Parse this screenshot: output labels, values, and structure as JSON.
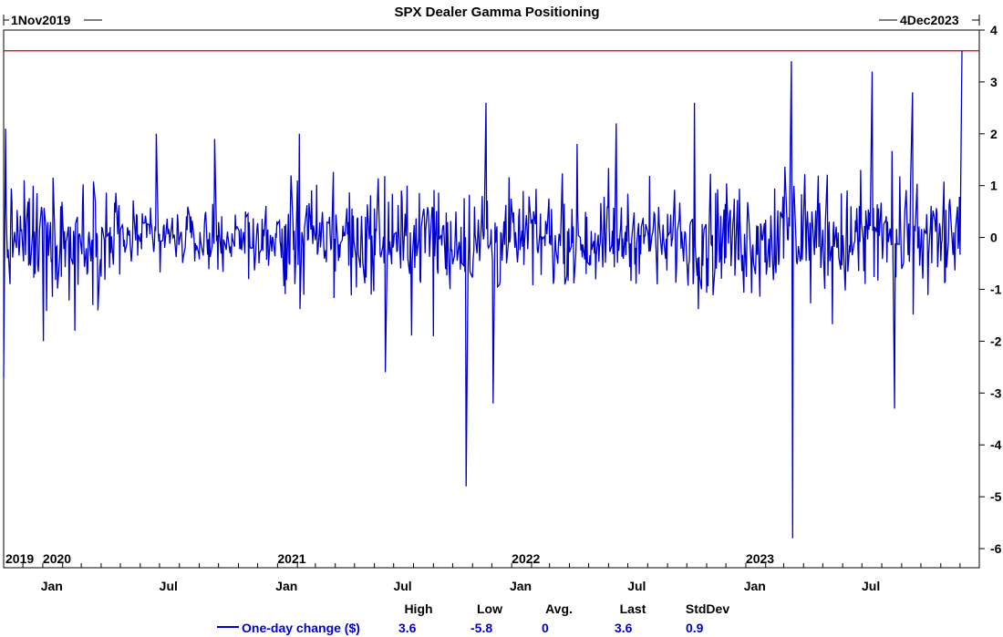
{
  "chart_data": {
    "type": "line",
    "title": "SPX Dealer Gamma Positioning",
    "start_label": "1Nov2019",
    "end_label": "4Dec2023",
    "x_start": "2019-11-01",
    "x_end": "2023-12-04",
    "ylim": [
      -6.2,
      4
    ],
    "y_ticks": [
      "4",
      "3",
      "2",
      "1",
      "0",
      "-1",
      "-2",
      "-3",
      "-4",
      "-5",
      "-6"
    ],
    "y_tick_values": [
      4,
      3,
      2,
      1,
      0,
      -1,
      -2,
      -3,
      -4,
      -5,
      -6
    ],
    "year_labels": [
      "2019",
      "2020",
      "2021",
      "2022",
      "2023"
    ],
    "month_labels": [
      "Jan",
      "Jul",
      "Jan",
      "Jul",
      "Jan",
      "Jul",
      "Jan",
      "Jul"
    ],
    "reference_line": {
      "value": 3.6,
      "color": "#cc0000"
    },
    "series": [
      {
        "name": "One-day change ($)",
        "color": "#0000cc",
        "notable_points": [
          {
            "x": "2019-11-01",
            "y": -2.7
          },
          {
            "x": "2019-11-04",
            "y": 2.1
          },
          {
            "x": "2020-01-02",
            "y": -2.0
          },
          {
            "x": "2020-02-20",
            "y": -1.8
          },
          {
            "x": "2020-06-26",
            "y": 2.0
          },
          {
            "x": "2020-09-25",
            "y": 1.9
          },
          {
            "x": "2021-02-04",
            "y": 2.0
          },
          {
            "x": "2021-06-18",
            "y": -2.6
          },
          {
            "x": "2021-10-22",
            "y": -4.8
          },
          {
            "x": "2021-11-22",
            "y": 2.6
          },
          {
            "x": "2021-12-03",
            "y": -3.2
          },
          {
            "x": "2022-06-13",
            "y": 2.2
          },
          {
            "x": "2022-10-13",
            "y": 2.6
          },
          {
            "x": "2023-03-13",
            "y": 3.4
          },
          {
            "x": "2023-03-15",
            "y": -5.8
          },
          {
            "x": "2023-07-17",
            "y": 3.2
          },
          {
            "x": "2023-08-21",
            "y": -3.3
          },
          {
            "x": "2023-09-18",
            "y": 2.8
          },
          {
            "x": "2023-12-04",
            "y": 3.6
          }
        ]
      }
    ],
    "stats": {
      "headers": [
        "High",
        "Low",
        "Avg.",
        "Last",
        "StdDev"
      ],
      "values": [
        "3.6",
        "-5.8",
        "0",
        "3.6",
        "0.9"
      ]
    },
    "grid": false,
    "legend": "bottom"
  }
}
